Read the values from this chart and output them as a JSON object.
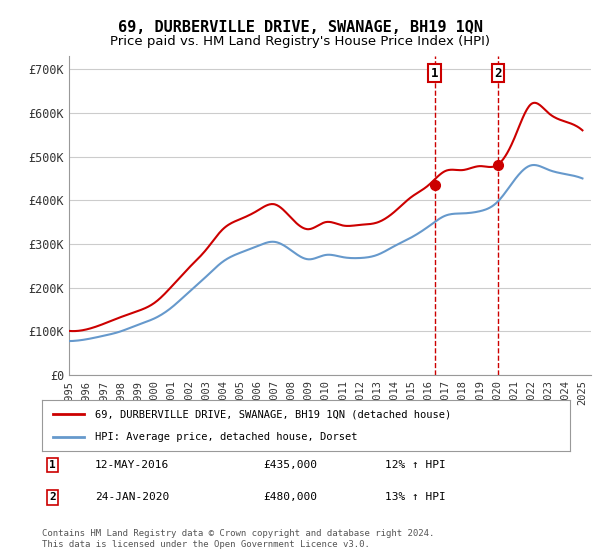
{
  "title": "69, DURBERVILLE DRIVE, SWANAGE, BH19 1QN",
  "subtitle": "Price paid vs. HM Land Registry's House Price Index (HPI)",
  "ylabel_ticks": [
    "£0",
    "£100K",
    "£200K",
    "£300K",
    "£400K",
    "£500K",
    "£600K",
    "£700K"
  ],
  "ytick_values": [
    0,
    100000,
    200000,
    300000,
    400000,
    500000,
    600000,
    700000
  ],
  "ylim": [
    0,
    730000
  ],
  "xlim_start": 1995.0,
  "xlim_end": 2025.5,
  "marker1_date": 2016.37,
  "marker1_value": 435000,
  "marker1_label": "1",
  "marker2_date": 2020.07,
  "marker2_value": 480000,
  "marker2_label": "2",
  "legend_line1": "69, DURBERVILLE DRIVE, SWANAGE, BH19 1QN (detached house)",
  "legend_line2": "HPI: Average price, detached house, Dorset",
  "annotation1": "12-MAY-2016     £435,000     12% ↑ HPI",
  "annotation2": "24-JAN-2020     £480,000     13% ↑ HPI",
  "footnote": "Contains HM Land Registry data © Crown copyright and database right 2024.\nThis data is licensed under the Open Government Licence v3.0.",
  "line_color_red": "#cc0000",
  "line_color_blue": "#6699cc",
  "background_color": "#ffffff",
  "grid_color": "#cccccc",
  "marker_box_color": "#cc0000",
  "title_fontsize": 11,
  "subtitle_fontsize": 9.5
}
